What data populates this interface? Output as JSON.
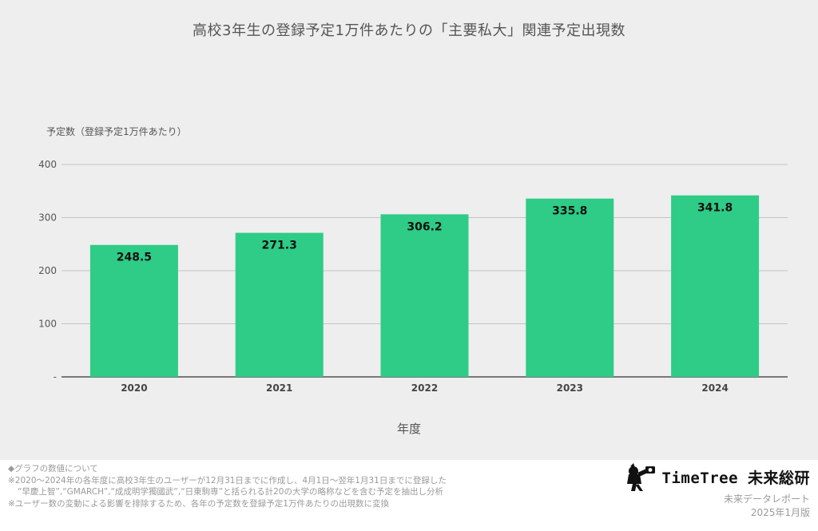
{
  "header": {
    "title": "高校3年生の登録予定1万件あたりの「主要私大」関連予定出現数"
  },
  "chart_data": {
    "type": "bar",
    "title": "高校3年生の登録予定1万件あたりの「主要私大」関連予定出現数",
    "ylabel": "予定数（登録予定1万件あたり）",
    "xlabel": "年度",
    "categories": [
      "2020",
      "2021",
      "2022",
      "2023",
      "2024"
    ],
    "values": [
      248.5,
      271.3,
      306.2,
      335.8,
      341.8
    ],
    "value_labels": [
      "248.5",
      "271.3",
      "306.2",
      "335.8",
      "341.8"
    ],
    "ylim": [
      0,
      400
    ],
    "yticks": [
      0,
      100,
      200,
      300,
      400
    ],
    "ytick_labels": [
      "-",
      "100",
      "200",
      "300",
      "400"
    ],
    "grid": true,
    "bar_color": "#2ecc87"
  },
  "footer": {
    "lines": [
      "◆グラフの数値について",
      "※2020～2024年の各年度に高校3年生のユーザーが12月31日までに作成し、4月1日～翌年1月31日までに登録した",
      "“早慶上智”,“GMARCH”,“成成明学獨國武”,“日東駒専”と括られる計20の大学の略称などを含む予定を抽出し分析",
      "※ユーザー数の変動による影響を排除するため、各年の予定数を登録予定1万件あたりの出現数に変換"
    ]
  },
  "brand": {
    "logo_text": "TimeTree 未来総研",
    "dept": "未来データレポート",
    "date": "2025年1月版"
  }
}
